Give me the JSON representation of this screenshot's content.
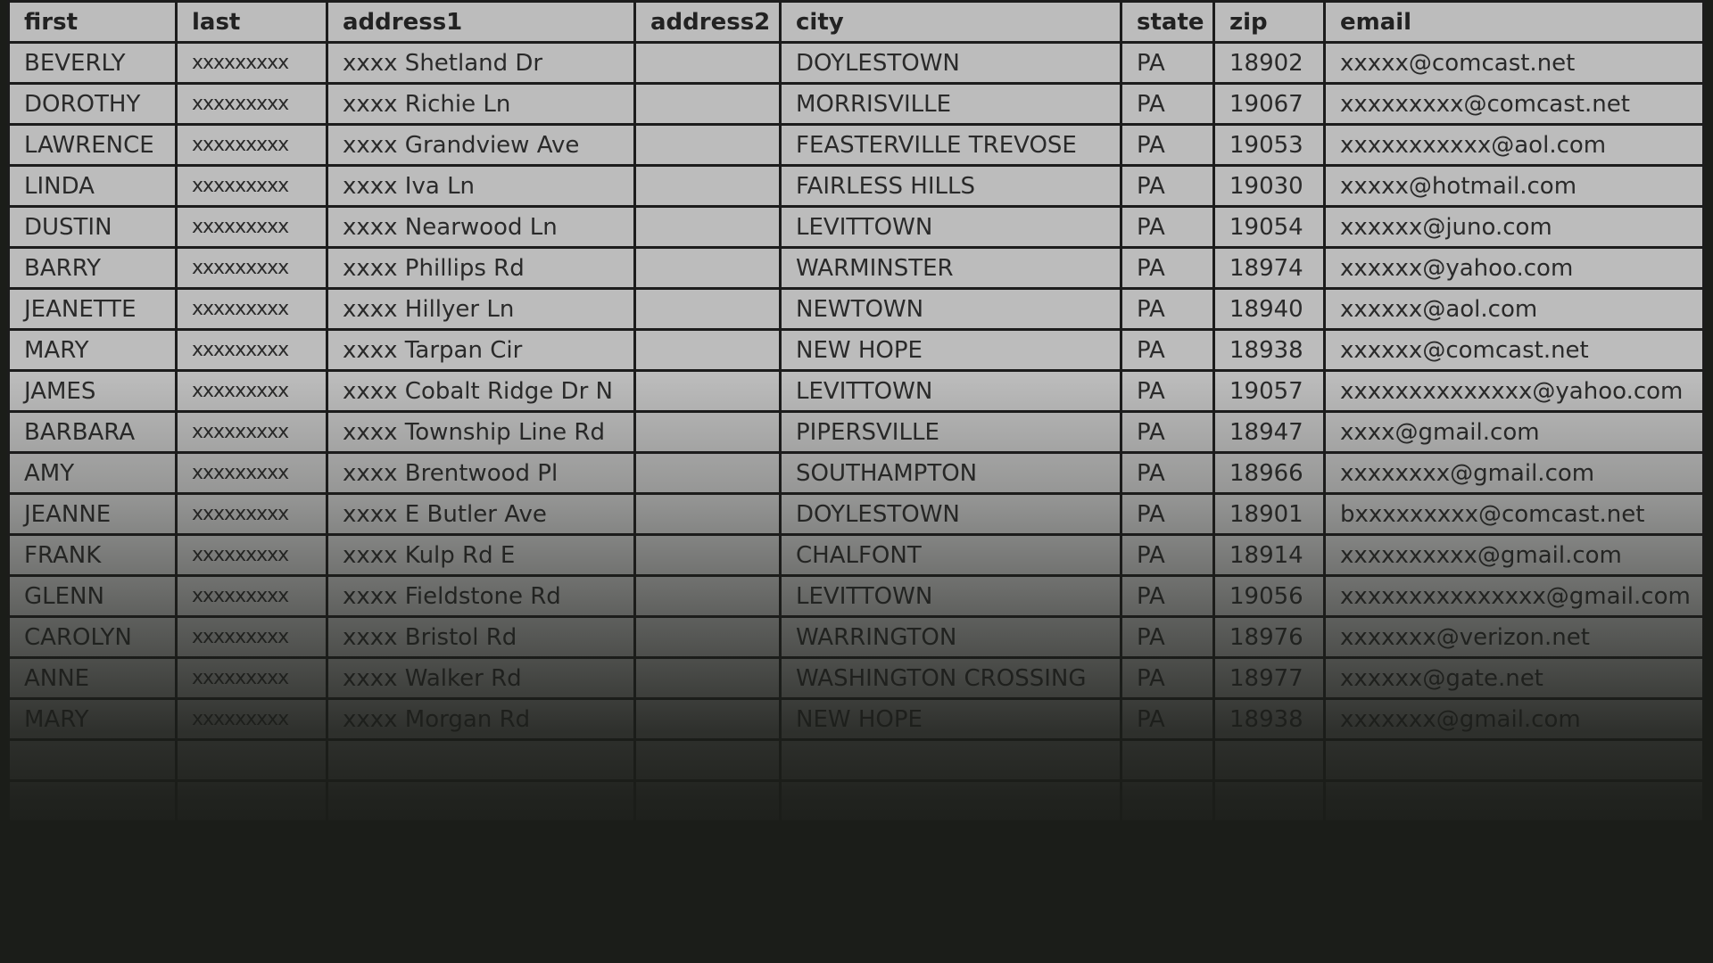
{
  "columns": [
    "first",
    "last",
    "address1",
    "address2",
    "city",
    "state",
    "zip",
    "email"
  ],
  "rows": [
    [
      "BEVERLY",
      "xxxxxxxxx",
      "xxxx Shetland Dr",
      "",
      "DOYLESTOWN",
      "PA",
      "18902",
      "xxxxx@comcast.net"
    ],
    [
      "DOROTHY",
      "xxxxxxxxx",
      "xxxx Richie Ln",
      "",
      "MORRISVILLE",
      "PA",
      "19067",
      "xxxxxxxxx@comcast.net"
    ],
    [
      "LAWRENCE",
      "xxxxxxxxx",
      "xxxx Grandview Ave",
      "",
      "FEASTERVILLE TREVOSE",
      "PA",
      "19053",
      "xxxxxxxxxxx@aol.com"
    ],
    [
      "LINDA",
      "xxxxxxxxx",
      "xxxx Iva Ln",
      "",
      "FAIRLESS HILLS",
      "PA",
      "19030",
      "xxxxx@hotmail.com"
    ],
    [
      "DUSTIN",
      "xxxxxxxxx",
      "xxxx Nearwood Ln",
      "",
      "LEVITTOWN",
      "PA",
      "19054",
      "xxxxxx@juno.com"
    ],
    [
      "BARRY",
      "xxxxxxxxx",
      "xxxx Phillips Rd",
      "",
      "WARMINSTER",
      "PA",
      "18974",
      "xxxxxx@yahoo.com"
    ],
    [
      "JEANETTE",
      "xxxxxxxxx",
      "xxxx Hillyer Ln",
      "",
      "NEWTOWN",
      "PA",
      "18940",
      "xxxxxx@aol.com"
    ],
    [
      "MARY",
      "xxxxxxxxx",
      "xxxx Tarpan Cir",
      "",
      "NEW HOPE",
      "PA",
      "18938",
      "xxxxxx@comcast.net"
    ],
    [
      "JAMES",
      "xxxxxxxxx",
      "xxxx Cobalt Ridge Dr N",
      "",
      "LEVITTOWN",
      "PA",
      "19057",
      "xxxxxxxxxxxxxx@yahoo.com"
    ],
    [
      "BARBARA",
      "xxxxxxxxx",
      "xxxx Township Line Rd",
      "",
      "PIPERSVILLE",
      "PA",
      "18947",
      "xxxx@gmail.com"
    ],
    [
      "AMY",
      "xxxxxxxxx",
      "xxxx Brentwood Pl",
      "",
      "SOUTHAMPTON",
      "PA",
      "18966",
      "xxxxxxxx@gmail.com"
    ],
    [
      "JEANNE",
      "xxxxxxxxx",
      "xxxx E Butler Ave",
      "",
      "DOYLESTOWN",
      "PA",
      "18901",
      "bxxxxxxxxx@comcast.net"
    ],
    [
      "FRANK",
      "xxxxxxxxx",
      "xxxx Kulp Rd E",
      "",
      "CHALFONT",
      "PA",
      "18914",
      "xxxxxxxxxx@gmail.com"
    ],
    [
      "GLENN",
      "xxxxxxxxx",
      "xxxx Fieldstone Rd",
      "",
      "LEVITTOWN",
      "PA",
      "19056",
      "xxxxxxxxxxxxxxx@gmail.com"
    ],
    [
      "CAROLYN",
      "xxxxxxxxx",
      "xxxx Bristol Rd",
      "",
      "WARRINGTON",
      "PA",
      "18976",
      "xxxxxxx@verizon.net"
    ],
    [
      "ANNE",
      "xxxxxxxxx",
      "xxxx Walker Rd",
      "",
      "WASHINGTON CROSSING",
      "PA",
      "18977",
      "xxxxxx@gate.net"
    ],
    [
      "MARY",
      "xxxxxxxxx",
      "xxxx Morgan Rd",
      "",
      "NEW HOPE",
      "PA",
      "18938",
      "xxxxxxx@gmail.com"
    ],
    [
      "",
      "",
      "",
      "",
      "",
      "",
      "",
      ""
    ],
    [
      "",
      "",
      "",
      "",
      "",
      "",
      "",
      ""
    ]
  ]
}
